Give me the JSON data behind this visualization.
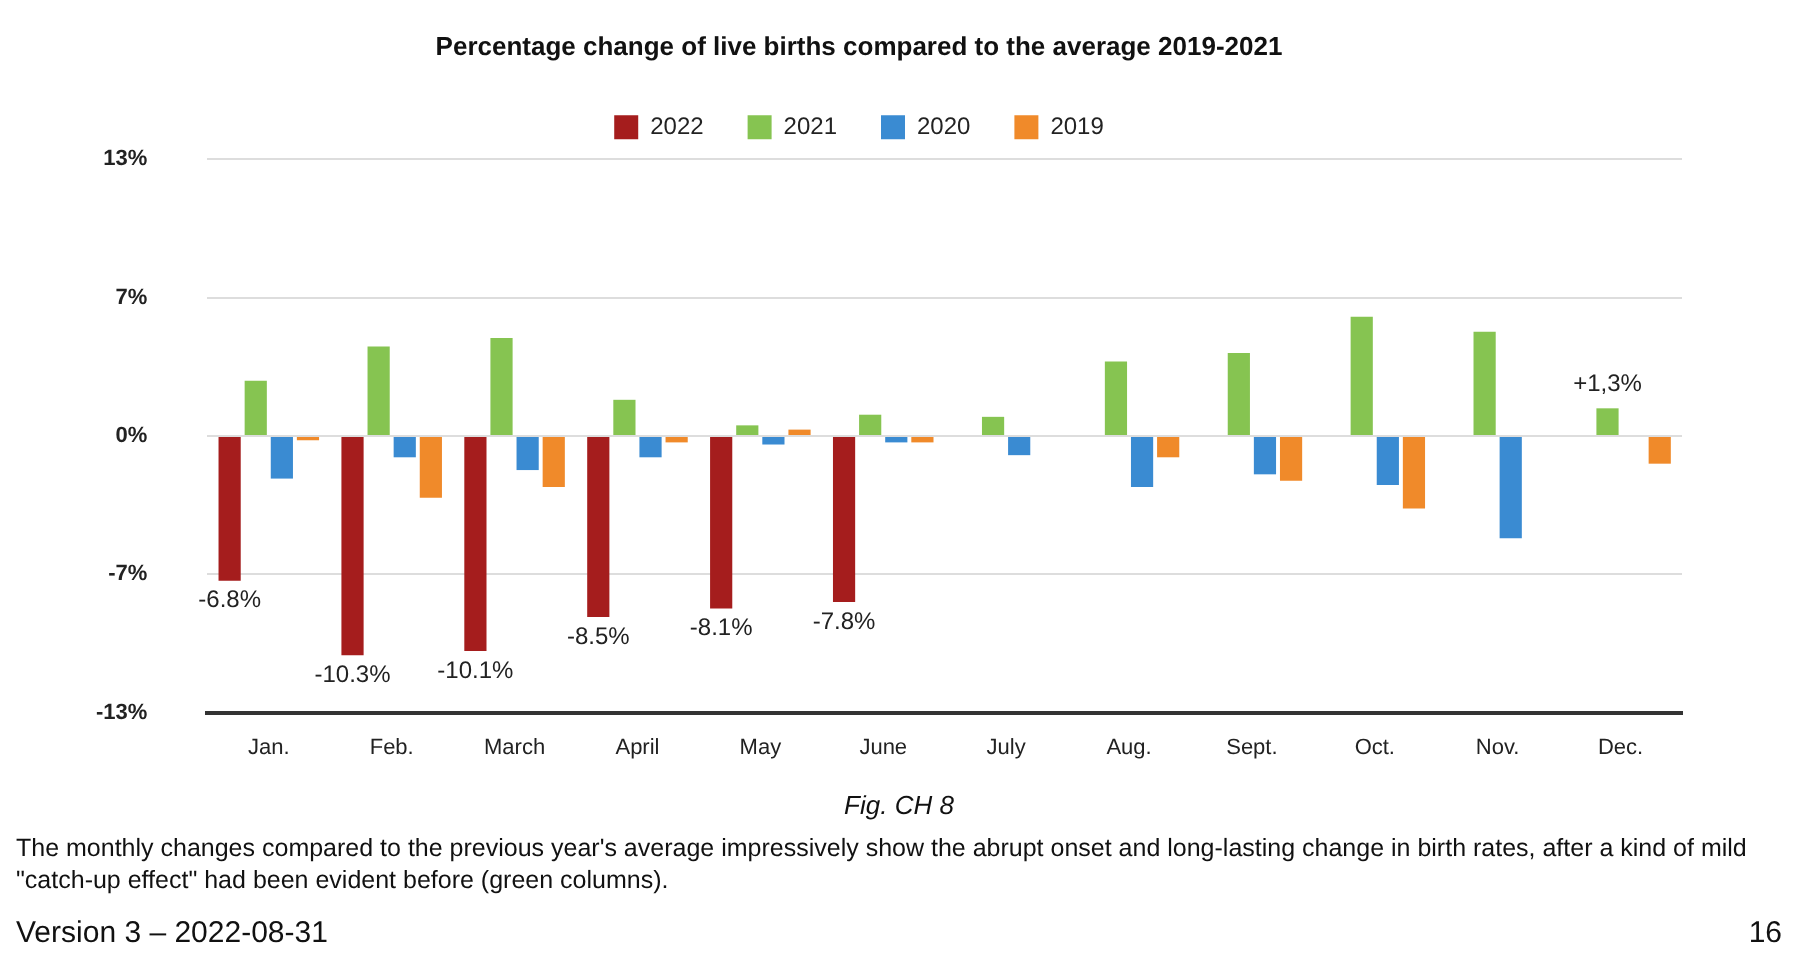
{
  "chart_data": {
    "type": "bar",
    "title": "Percentage change of live births compared to the average 2019-2021",
    "categories": [
      "Jan.",
      "Feb.",
      "March",
      "April",
      "May",
      "June",
      "July",
      "Aug.",
      "Sept.",
      "Oct.",
      "Nov.",
      "Dec."
    ],
    "series": [
      {
        "name": "2022",
        "color": "#a51d1d",
        "values": [
          -6.8,
          -10.3,
          -10.1,
          -8.5,
          -8.1,
          -7.8,
          null,
          null,
          null,
          null,
          null,
          null
        ],
        "value_labels": [
          "-6.8%",
          "-10.3%",
          "-10.1%",
          "-8.5%",
          "-8.1%",
          "-7.8%",
          null,
          null,
          null,
          null,
          null,
          null
        ]
      },
      {
        "name": "2021",
        "color": "#86c451",
        "values": [
          2.6,
          4.2,
          4.6,
          1.7,
          0.5,
          1.0,
          0.9,
          3.5,
          3.9,
          5.6,
          4.9,
          1.3
        ],
        "value_labels": [
          null,
          null,
          null,
          null,
          null,
          null,
          null,
          null,
          null,
          null,
          null,
          "+1,3%"
        ]
      },
      {
        "name": "2020",
        "color": "#3a8bd2",
        "values": [
          -2.0,
          -1.0,
          -1.6,
          -1.0,
          -0.4,
          -0.3,
          -0.9,
          -2.4,
          -1.8,
          -2.3,
          -4.8,
          null
        ]
      },
      {
        "name": "2019",
        "color": "#f08a2a",
        "values": [
          -0.2,
          -2.9,
          -2.4,
          -0.3,
          0.3,
          -0.3,
          null,
          -1.0,
          -2.1,
          -3.4,
          null,
          -1.3
        ]
      }
    ],
    "ylim": [
      -13,
      13
    ],
    "yticks": [
      {
        "value": -13,
        "label": "-13%"
      },
      {
        "value": -6.5,
        "label": "-7%"
      },
      {
        "value": 0,
        "label": "0%"
      },
      {
        "value": 6.5,
        "label": "7%"
      },
      {
        "value": 13,
        "label": "13%"
      }
    ],
    "grid": "y",
    "legend": "top",
    "annotations": [
      "Fig. CH 8",
      "The monthly changes compared to the previous year's average impressively show the abrupt onset and long-lasting change in birth rates, after a kind of mild \"catch-up effect\" had been evident before (green columns).",
      "Version 3 – 2022-08-31",
      "16"
    ]
  }
}
